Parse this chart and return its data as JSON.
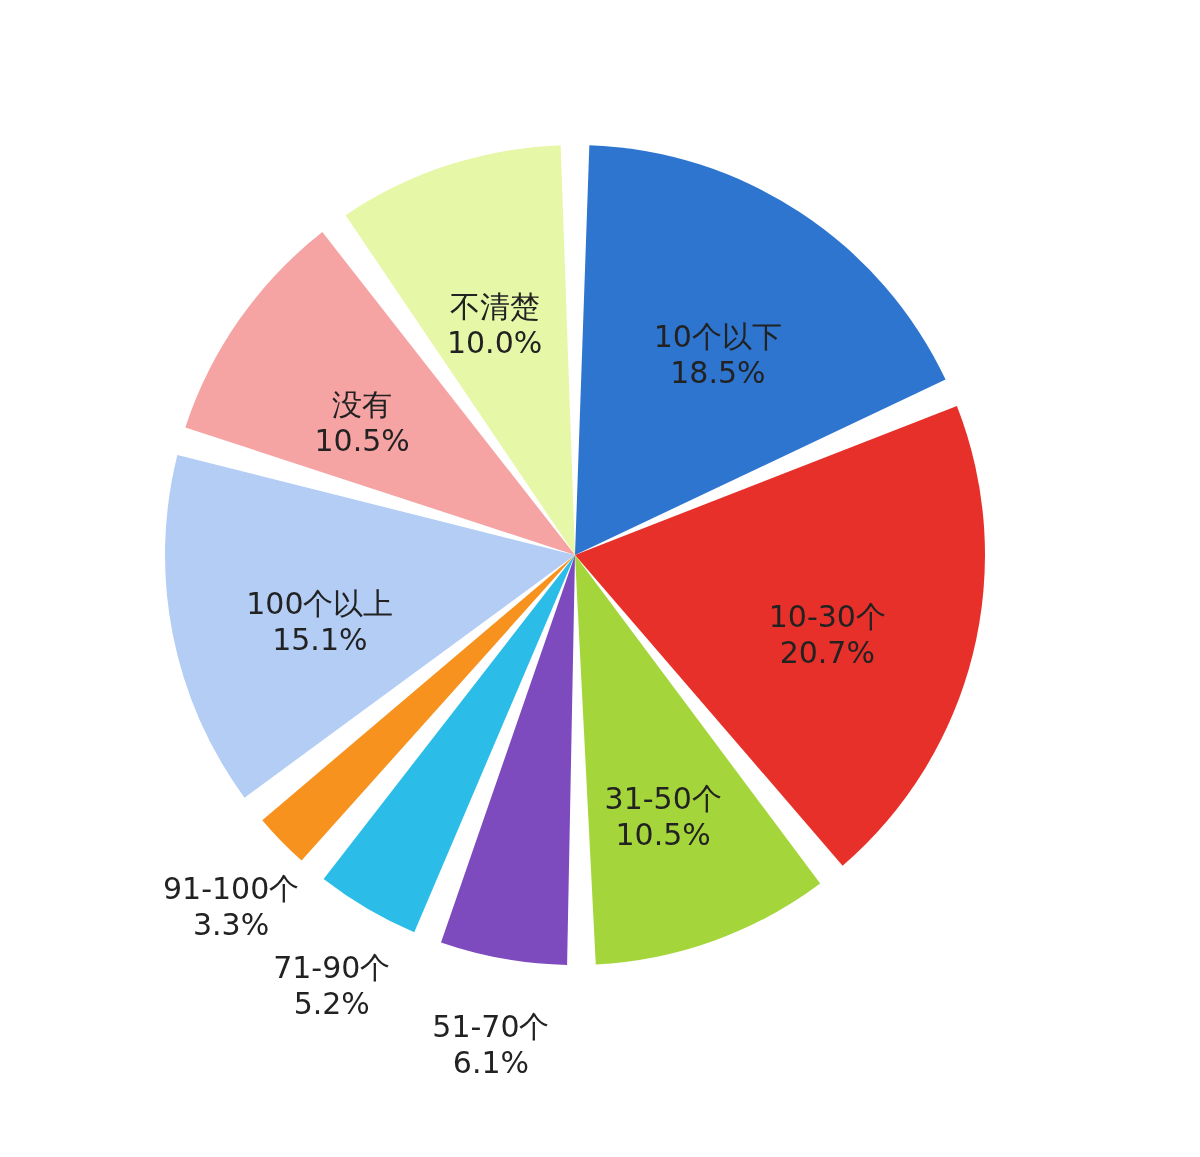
{
  "chart_data": {
    "type": "pie",
    "categories": [
      "10个以下",
      "10-30个",
      "31-50个",
      "51-70个",
      "71-90个",
      "91-100个",
      "100个以上",
      "没有",
      "不清楚"
    ],
    "values": [
      18.5,
      20.7,
      10.5,
      6.1,
      5.2,
      3.3,
      15.1,
      10.5,
      10.0
    ],
    "value_labels": [
      "18.5%",
      "20.7%",
      "10.5%",
      "6.1%",
      "5.2%",
      "3.3%",
      "15.1%",
      "10.5%",
      "10.0%"
    ],
    "colors": [
      "#2e75d0",
      "#e8302a",
      "#a4d63c",
      "#7e4bbf",
      "#2bbde8",
      "#f7921e",
      "#b3cdf5",
      "#f5a3a3",
      "#e6f7a8"
    ],
    "legend": false
  }
}
